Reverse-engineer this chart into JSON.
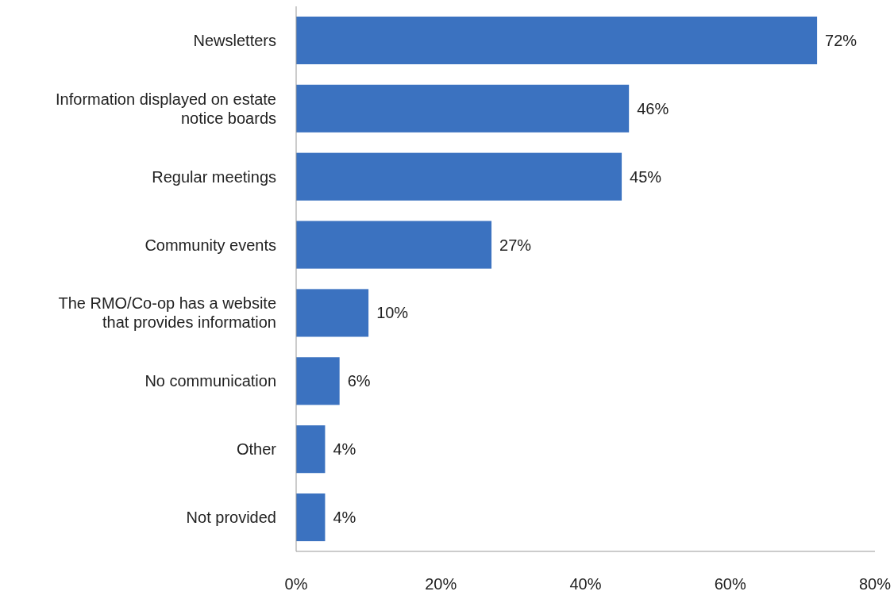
{
  "chart_data": {
    "type": "bar",
    "orientation": "horizontal",
    "categories": [
      "Newsletters",
      "Information displayed on estate notice boards",
      "Regular meetings",
      "Community events",
      "The RMO/Co-op has a website that provides information",
      "No communication",
      "Other",
      "Not provided"
    ],
    "values": [
      72,
      46,
      45,
      27,
      10,
      6,
      4,
      4
    ],
    "value_labels": [
      "72%",
      "46%",
      "45%",
      "27%",
      "10%",
      "6%",
      "4%",
      "4%"
    ],
    "color": "#3b72c0",
    "xlim": [
      0,
      80
    ],
    "xticks": [
      {
        "value": 0,
        "label": "0%"
      },
      {
        "value": 20,
        "label": "20%"
      },
      {
        "value": 40,
        "label": "40%"
      },
      {
        "value": 60,
        "label": "60%"
      },
      {
        "value": 80,
        "label": "80%"
      }
    ],
    "grid": false
  }
}
